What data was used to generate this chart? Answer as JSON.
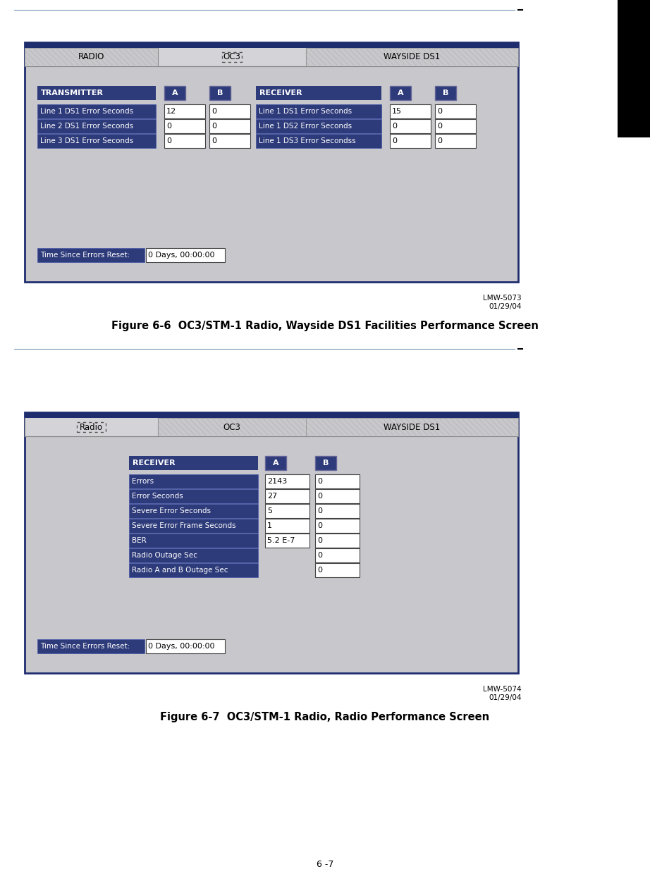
{
  "fig_width": 9.22,
  "fig_height": 12.33,
  "dpi": 100,
  "bg_color": "#ffffff",
  "dark_blue": "#2e3b7a",
  "panel_bg": "#c8c8cc",
  "tab_bg": "#d4d4d8",
  "white": "#ffffff",
  "black": "#000000",
  "nav_bar_color": "#1e2d6e",
  "fig1_caption": "Figure 6-6  OC3/STM-1 Radio, Wayside DS1 Facilities Performance Screen",
  "fig2_caption": "Figure 6-7  OC3/STM-1 Radio, Radio Performance Screen",
  "page_num": "6 -7",
  "fig1_lmw": "LMW-5073",
  "fig1_date": "01/29/04",
  "fig2_lmw": "LMW-5074",
  "fig2_date": "01/29/04",
  "tab1_tabs": [
    "RADIO",
    "OC3",
    "WAYSIDE DS1"
  ],
  "tab2_tabs": [
    "Radio",
    "OC3",
    "WAYSIDE DS1"
  ],
  "tx_rows": [
    [
      "Line 1 DS1 Error Seconds",
      "12",
      "0"
    ],
    [
      "Line 2 DS1 Error Seconds",
      "0",
      "0"
    ],
    [
      "Line 3 DS1 Error Seconds",
      "0",
      "0"
    ]
  ],
  "rx_rows": [
    [
      "Line 1 DS1 Error Seconds",
      "15",
      "0"
    ],
    [
      "Line 1 DS2 Error Seconds",
      "0",
      "0"
    ],
    [
      "Line 1 DS3 Error Secondss",
      "0",
      "0"
    ]
  ],
  "radio_rows": [
    [
      "Errors",
      "2143",
      "0",
      true
    ],
    [
      "Error Seconds",
      "27",
      "0",
      true
    ],
    [
      "Severe Error Seconds",
      "5",
      "0",
      true
    ],
    [
      "Severe Error Frame Seconds",
      "1",
      "0",
      true
    ],
    [
      "BER",
      "5.2 E-7",
      "0",
      true
    ],
    [
      "Radio Outage Sec",
      "",
      "0",
      false
    ],
    [
      "Radio A and B Outage Sec",
      "",
      "0",
      false
    ]
  ],
  "time_reset": "0 Days, 00:00:00"
}
